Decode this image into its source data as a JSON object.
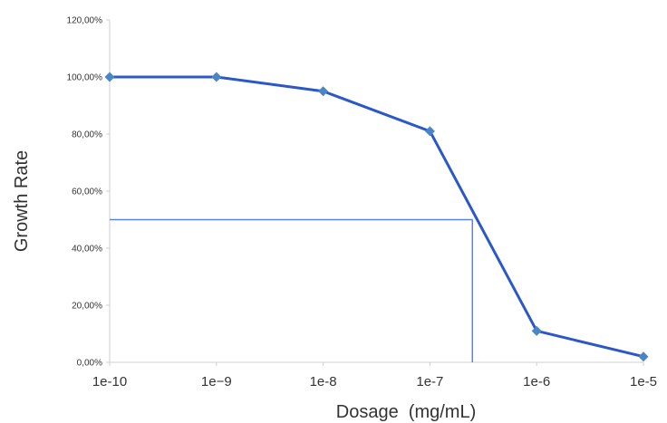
{
  "chart_data": {
    "type": "line",
    "title": "",
    "xlabel": "Dosage  (mg/mL)",
    "ylabel": "Growth Rate",
    "x_scale": "log",
    "x": [
      1e-10,
      1e-09,
      1e-08,
      1e-07,
      1e-06,
      1e-05
    ],
    "x_tick_labels": [
      "1e-10",
      "1e−9",
      "1e-8",
      "1e-7",
      "1e-6",
      "1e-5"
    ],
    "y_tick_labels": [
      "0,00%",
      "20,00%",
      "40,00%",
      "60,00%",
      "80,00%",
      "100,00%",
      "120,00%"
    ],
    "ylim": [
      0,
      1.2
    ],
    "series": [
      {
        "values": [
          1.0,
          1.0,
          0.95,
          0.81,
          0.11,
          0.02
        ],
        "color": "#2b58c8",
        "marker_color": "#4a86c6"
      }
    ],
    "reference": {
      "y": 0.5,
      "x": 2.5e-07,
      "color": "#5b84e0"
    },
    "grid": false,
    "legend": "none"
  }
}
